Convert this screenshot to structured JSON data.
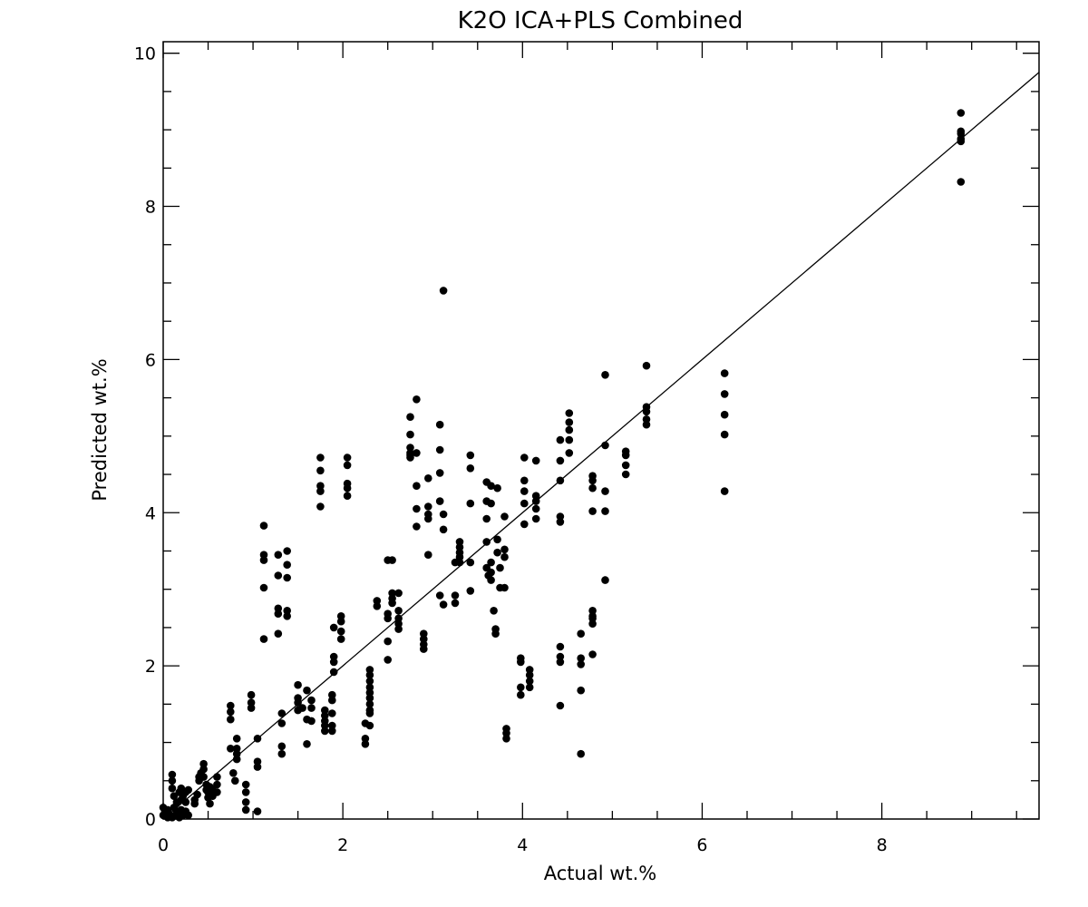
{
  "chart_data": {
    "type": "scatter",
    "title": "K2O ICA+PLS Combined",
    "xlabel": "Actual wt.%",
    "ylabel": "Predicted wt.%",
    "xlim": [
      0,
      9.75
    ],
    "ylim": [
      0,
      10.15
    ],
    "xticks": [
      0,
      2,
      4,
      6,
      8
    ],
    "yticks": [
      0,
      2,
      4,
      6,
      8,
      10
    ],
    "x_minor_step": 0.5,
    "y_minor_step": 0.5,
    "grid": false,
    "legend": "none",
    "marker_color": "#000000",
    "reference_line": {
      "type": "identity",
      "x": [
        0,
        9.75
      ],
      "y": [
        0,
        9.75
      ]
    },
    "points": [
      [
        0.0,
        0.15
      ],
      [
        0.0,
        0.05
      ],
      [
        0.02,
        0.1
      ],
      [
        0.05,
        0.02
      ],
      [
        0.05,
        0.12
      ],
      [
        0.08,
        0.05
      ],
      [
        0.1,
        0.02
      ],
      [
        0.1,
        0.4
      ],
      [
        0.1,
        0.5
      ],
      [
        0.1,
        0.58
      ],
      [
        0.12,
        0.3
      ],
      [
        0.12,
        0.15
      ],
      [
        0.15,
        0.22
      ],
      [
        0.15,
        0.1
      ],
      [
        0.15,
        0.05
      ],
      [
        0.18,
        0.35
      ],
      [
        0.18,
        0.02
      ],
      [
        0.2,
        0.4
      ],
      [
        0.2,
        0.25
      ],
      [
        0.2,
        0.12
      ],
      [
        0.22,
        0.3
      ],
      [
        0.22,
        0.05
      ],
      [
        0.25,
        0.35
      ],
      [
        0.25,
        0.22
      ],
      [
        0.25,
        0.1
      ],
      [
        0.28,
        0.38
      ],
      [
        0.28,
        0.05
      ],
      [
        0.35,
        0.2
      ],
      [
        0.35,
        0.25
      ],
      [
        0.38,
        0.32
      ],
      [
        0.4,
        0.5
      ],
      [
        0.4,
        0.55
      ],
      [
        0.42,
        0.6
      ],
      [
        0.45,
        0.72
      ],
      [
        0.45,
        0.65
      ],
      [
        0.45,
        0.55
      ],
      [
        0.48,
        0.45
      ],
      [
        0.48,
        0.38
      ],
      [
        0.5,
        0.35
      ],
      [
        0.5,
        0.28
      ],
      [
        0.52,
        0.42
      ],
      [
        0.52,
        0.2
      ],
      [
        0.55,
        0.38
      ],
      [
        0.55,
        0.3
      ],
      [
        0.6,
        0.55
      ],
      [
        0.6,
        0.45
      ],
      [
        0.6,
        0.35
      ],
      [
        0.75,
        1.48
      ],
      [
        0.75,
        1.4
      ],
      [
        0.75,
        1.3
      ],
      [
        0.75,
        0.92
      ],
      [
        0.78,
        0.6
      ],
      [
        0.8,
        0.5
      ],
      [
        0.82,
        1.05
      ],
      [
        0.82,
        0.92
      ],
      [
        0.82,
        0.85
      ],
      [
        0.82,
        0.78
      ],
      [
        0.92,
        0.45
      ],
      [
        0.92,
        0.35
      ],
      [
        0.92,
        0.22
      ],
      [
        0.92,
        0.12
      ],
      [
        0.98,
        1.62
      ],
      [
        0.98,
        1.52
      ],
      [
        0.98,
        1.45
      ],
      [
        1.05,
        1.05
      ],
      [
        1.05,
        0.75
      ],
      [
        1.05,
        0.68
      ],
      [
        1.05,
        0.1
      ],
      [
        1.12,
        3.83
      ],
      [
        1.12,
        3.45
      ],
      [
        1.12,
        3.38
      ],
      [
        1.12,
        3.02
      ],
      [
        1.12,
        2.35
      ],
      [
        1.28,
        3.45
      ],
      [
        1.28,
        3.18
      ],
      [
        1.28,
        2.75
      ],
      [
        1.28,
        2.68
      ],
      [
        1.28,
        2.42
      ],
      [
        1.32,
        1.38
      ],
      [
        1.32,
        1.25
      ],
      [
        1.32,
        0.95
      ],
      [
        1.32,
        0.85
      ],
      [
        1.38,
        3.5
      ],
      [
        1.38,
        3.32
      ],
      [
        1.38,
        3.15
      ],
      [
        1.38,
        2.72
      ],
      [
        1.38,
        2.65
      ],
      [
        1.5,
        1.75
      ],
      [
        1.5,
        1.58
      ],
      [
        1.5,
        1.52
      ],
      [
        1.5,
        1.42
      ],
      [
        1.55,
        1.45
      ],
      [
        1.6,
        1.68
      ],
      [
        1.6,
        1.3
      ],
      [
        1.6,
        0.98
      ],
      [
        1.65,
        1.55
      ],
      [
        1.65,
        1.45
      ],
      [
        1.65,
        1.28
      ],
      [
        1.75,
        4.72
      ],
      [
        1.75,
        4.55
      ],
      [
        1.75,
        4.35
      ],
      [
        1.75,
        4.28
      ],
      [
        1.75,
        4.08
      ],
      [
        1.8,
        1.42
      ],
      [
        1.8,
        1.35
      ],
      [
        1.8,
        1.28
      ],
      [
        1.8,
        1.22
      ],
      [
        1.8,
        1.15
      ],
      [
        1.88,
        1.62
      ],
      [
        1.88,
        1.55
      ],
      [
        1.88,
        1.38
      ],
      [
        1.88,
        1.22
      ],
      [
        1.88,
        1.15
      ],
      [
        1.9,
        2.5
      ],
      [
        1.9,
        2.12
      ],
      [
        1.9,
        2.05
      ],
      [
        1.9,
        1.92
      ],
      [
        1.98,
        2.65
      ],
      [
        1.98,
        2.58
      ],
      [
        1.98,
        2.45
      ],
      [
        1.98,
        2.35
      ],
      [
        2.05,
        4.72
      ],
      [
        2.05,
        4.62
      ],
      [
        2.05,
        4.38
      ],
      [
        2.05,
        4.32
      ],
      [
        2.05,
        4.22
      ],
      [
        2.25,
        1.25
      ],
      [
        2.25,
        1.05
      ],
      [
        2.25,
        0.98
      ],
      [
        2.3,
        1.95
      ],
      [
        2.3,
        1.88
      ],
      [
        2.3,
        1.8
      ],
      [
        2.3,
        1.72
      ],
      [
        2.3,
        1.65
      ],
      [
        2.3,
        1.58
      ],
      [
        2.3,
        1.5
      ],
      [
        2.3,
        1.42
      ],
      [
        2.3,
        1.38
      ],
      [
        2.3,
        1.22
      ],
      [
        2.38,
        2.85
      ],
      [
        2.38,
        2.78
      ],
      [
        2.5,
        3.38
      ],
      [
        2.5,
        2.68
      ],
      [
        2.5,
        2.62
      ],
      [
        2.5,
        2.32
      ],
      [
        2.5,
        2.08
      ],
      [
        2.55,
        3.38
      ],
      [
        2.55,
        2.95
      ],
      [
        2.55,
        2.88
      ],
      [
        2.55,
        2.82
      ],
      [
        2.62,
        2.95
      ],
      [
        2.62,
        2.72
      ],
      [
        2.62,
        2.62
      ],
      [
        2.62,
        2.55
      ],
      [
        2.62,
        2.48
      ],
      [
        2.75,
        5.25
      ],
      [
        2.75,
        5.02
      ],
      [
        2.75,
        4.85
      ],
      [
        2.75,
        4.78
      ],
      [
        2.75,
        4.75
      ],
      [
        2.75,
        4.72
      ],
      [
        2.82,
        5.48
      ],
      [
        2.82,
        4.78
      ],
      [
        2.82,
        4.35
      ],
      [
        2.82,
        4.05
      ],
      [
        2.82,
        3.82
      ],
      [
        2.9,
        2.42
      ],
      [
        2.9,
        2.35
      ],
      [
        2.9,
        2.28
      ],
      [
        2.9,
        2.22
      ],
      [
        2.95,
        4.45
      ],
      [
        2.95,
        4.08
      ],
      [
        2.95,
        3.98
      ],
      [
        2.95,
        3.92
      ],
      [
        2.95,
        3.45
      ],
      [
        3.08,
        5.15
      ],
      [
        3.08,
        4.82
      ],
      [
        3.08,
        4.52
      ],
      [
        3.08,
        4.15
      ],
      [
        3.08,
        2.92
      ],
      [
        3.12,
        6.9
      ],
      [
        3.12,
        3.98
      ],
      [
        3.12,
        3.78
      ],
      [
        3.12,
        2.8
      ],
      [
        3.25,
        3.35
      ],
      [
        3.25,
        2.92
      ],
      [
        3.25,
        2.82
      ],
      [
        3.3,
        3.62
      ],
      [
        3.3,
        3.55
      ],
      [
        3.3,
        3.48
      ],
      [
        3.3,
        3.42
      ],
      [
        3.3,
        3.35
      ],
      [
        3.42,
        4.75
      ],
      [
        3.42,
        4.58
      ],
      [
        3.42,
        4.12
      ],
      [
        3.42,
        3.35
      ],
      [
        3.42,
        2.98
      ],
      [
        3.6,
        4.4
      ],
      [
        3.6,
        4.15
      ],
      [
        3.6,
        3.92
      ],
      [
        3.6,
        3.62
      ],
      [
        3.6,
        3.28
      ],
      [
        3.62,
        3.18
      ],
      [
        3.65,
        4.35
      ],
      [
        3.65,
        4.12
      ],
      [
        3.65,
        3.35
      ],
      [
        3.65,
        3.22
      ],
      [
        3.65,
        3.12
      ],
      [
        3.68,
        2.72
      ],
      [
        3.7,
        2.48
      ],
      [
        3.7,
        2.42
      ],
      [
        3.72,
        4.32
      ],
      [
        3.72,
        3.65
      ],
      [
        3.72,
        3.48
      ],
      [
        3.75,
        3.28
      ],
      [
        3.75,
        3.02
      ],
      [
        3.8,
        3.95
      ],
      [
        3.8,
        3.52
      ],
      [
        3.8,
        3.42
      ],
      [
        3.8,
        3.02
      ],
      [
        3.82,
        1.18
      ],
      [
        3.82,
        1.12
      ],
      [
        3.82,
        1.05
      ],
      [
        3.98,
        2.1
      ],
      [
        3.98,
        2.05
      ],
      [
        3.98,
        1.72
      ],
      [
        3.98,
        1.62
      ],
      [
        4.02,
        4.72
      ],
      [
        4.02,
        4.42
      ],
      [
        4.02,
        4.28
      ],
      [
        4.02,
        4.12
      ],
      [
        4.02,
        3.85
      ],
      [
        4.08,
        1.95
      ],
      [
        4.08,
        1.88
      ],
      [
        4.08,
        1.8
      ],
      [
        4.08,
        1.72
      ],
      [
        4.15,
        4.68
      ],
      [
        4.15,
        4.22
      ],
      [
        4.15,
        4.15
      ],
      [
        4.15,
        4.05
      ],
      [
        4.15,
        3.92
      ],
      [
        4.42,
        4.95
      ],
      [
        4.42,
        4.68
      ],
      [
        4.42,
        4.42
      ],
      [
        4.42,
        3.95
      ],
      [
        4.42,
        3.88
      ],
      [
        4.42,
        2.25
      ],
      [
        4.42,
        2.12
      ],
      [
        4.42,
        2.05
      ],
      [
        4.42,
        1.48
      ],
      [
        4.52,
        5.3
      ],
      [
        4.52,
        5.18
      ],
      [
        4.52,
        5.08
      ],
      [
        4.52,
        4.95
      ],
      [
        4.52,
        4.78
      ],
      [
        4.65,
        2.42
      ],
      [
        4.65,
        2.1
      ],
      [
        4.65,
        2.02
      ],
      [
        4.65,
        1.68
      ],
      [
        4.65,
        0.85
      ],
      [
        4.78,
        4.48
      ],
      [
        4.78,
        4.42
      ],
      [
        4.78,
        4.32
      ],
      [
        4.78,
        4.02
      ],
      [
        4.78,
        2.72
      ],
      [
        4.78,
        2.65
      ],
      [
        4.78,
        2.62
      ],
      [
        4.78,
        2.55
      ],
      [
        4.78,
        2.15
      ],
      [
        4.92,
        5.8
      ],
      [
        4.92,
        4.88
      ],
      [
        4.92,
        4.28
      ],
      [
        4.92,
        4.02
      ],
      [
        4.92,
        3.12
      ],
      [
        5.15,
        4.8
      ],
      [
        5.15,
        4.75
      ],
      [
        5.15,
        4.62
      ],
      [
        5.15,
        4.5
      ],
      [
        5.38,
        5.92
      ],
      [
        5.38,
        5.38
      ],
      [
        5.38,
        5.32
      ],
      [
        5.38,
        5.22
      ],
      [
        5.38,
        5.15
      ],
      [
        6.25,
        5.82
      ],
      [
        6.25,
        5.55
      ],
      [
        6.25,
        5.28
      ],
      [
        6.25,
        5.02
      ],
      [
        6.25,
        4.28
      ],
      [
        8.88,
        9.22
      ],
      [
        8.88,
        8.98
      ],
      [
        8.88,
        8.95
      ],
      [
        8.88,
        8.88
      ],
      [
        8.88,
        8.85
      ],
      [
        8.88,
        8.32
      ]
    ]
  }
}
